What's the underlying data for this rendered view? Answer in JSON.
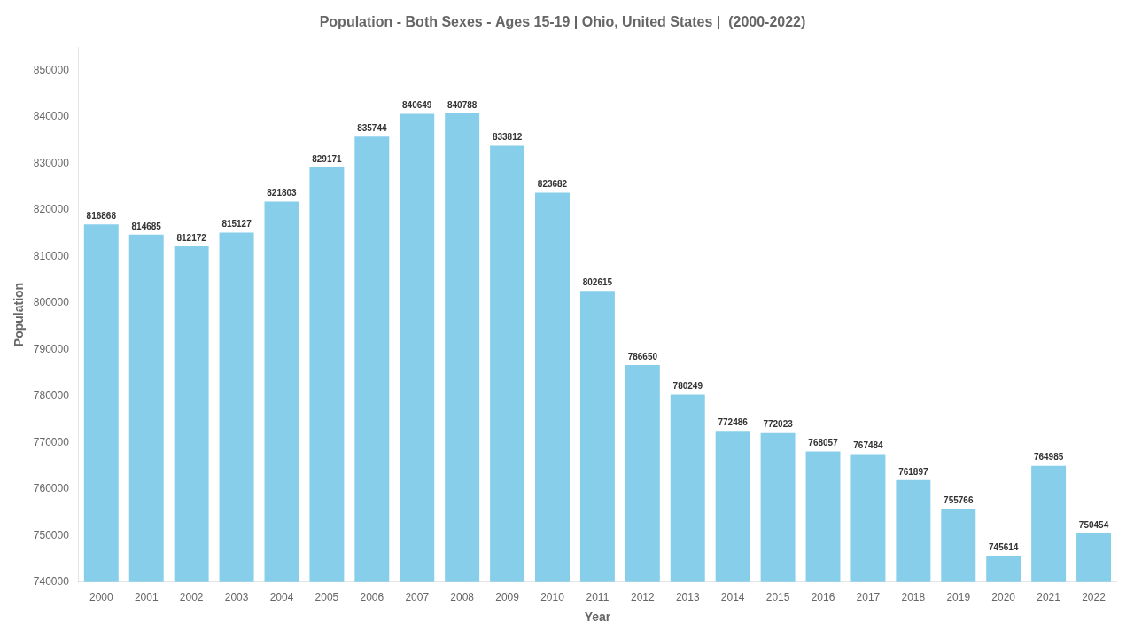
{
  "chart_data": {
    "type": "bar",
    "title": "Population - Both Sexes - Ages 15-19 | Ohio, United States |  (2000-2022)",
    "xlabel": "Year",
    "ylabel": "Population",
    "categories": [
      "2000",
      "2001",
      "2002",
      "2003",
      "2004",
      "2005",
      "2006",
      "2007",
      "2008",
      "2009",
      "2010",
      "2011",
      "2012",
      "2013",
      "2014",
      "2015",
      "2016",
      "2017",
      "2018",
      "2019",
      "2020",
      "2021",
      "2022"
    ],
    "values": [
      816868,
      814685,
      812172,
      815127,
      821803,
      829171,
      835744,
      840649,
      840788,
      833812,
      823682,
      802615,
      786650,
      780249,
      772486,
      772023,
      768057,
      767484,
      761897,
      755766,
      745614,
      764985,
      750454
    ],
    "color": "#87CEEB",
    "ylim": [
      740000,
      855000
    ],
    "yticks": [
      740000,
      750000,
      760000,
      770000,
      780000,
      790000,
      800000,
      810000,
      820000,
      830000,
      840000,
      850000
    ],
    "grid": false,
    "data_labels": true
  }
}
